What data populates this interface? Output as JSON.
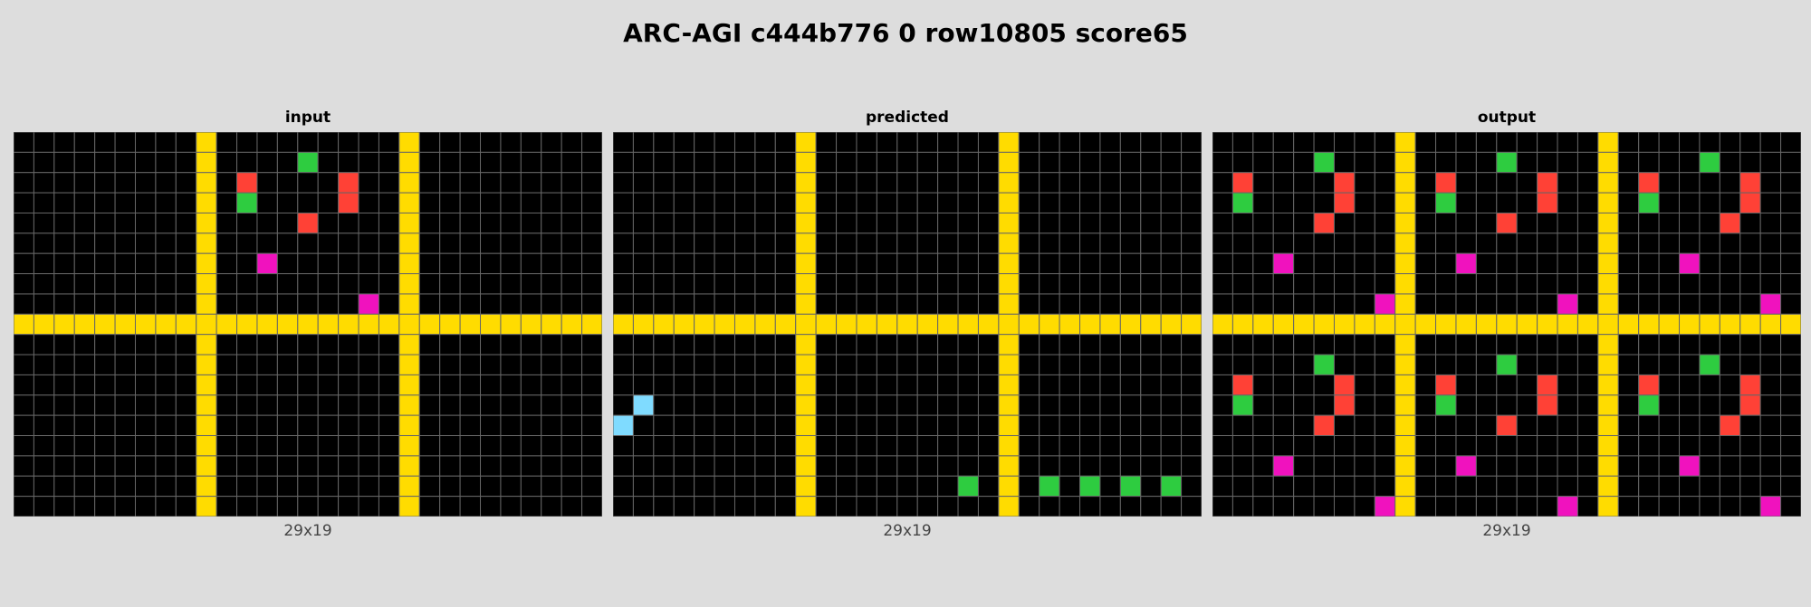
{
  "title": "ARC-AGI c444b776 0 row10805 score65",
  "colors": {
    "0": "#000000",
    "2": "#FF4136",
    "3": "#2ECC40",
    "4": "#FFDC00",
    "6": "#F012BE",
    "8": "#7FDBFF",
    "gridline": "#666666"
  },
  "panels": [
    {
      "label": "input",
      "size": "29x19",
      "grid": [
        "00000000040000000004000000000",
        "00000000040000300004000000000",
        "00000000040200002004000000000",
        "00000000040300002004000000000",
        "00000000040000200004000000000",
        "00000000040000000004000000000",
        "00000000040060000004000000000",
        "00000000040000000004000000000",
        "00000000040000000604000000000",
        "44444444444444444444444444444",
        "00000000040000000004000000000",
        "00000000040000000004000000000",
        "00000000040000000004000000000",
        "00000000040000000004000000000",
        "00000000040000000004000000000",
        "00000000040000000004000000000",
        "00000000040000000004000000000",
        "00000000040000000004000000000",
        "00000000040000000004000000000"
      ]
    },
    {
      "label": "predicted",
      "size": "29x19",
      "grid": [
        "00000000040000000004000000000",
        "00000000040000000004000000000",
        "00000000040000000004000000000",
        "00000000040000000004000000000",
        "00000000040000000004000000000",
        "00000000040000000004000000000",
        "00000000040000000004000000000",
        "00000000040000000004000000000",
        "00000000040000000004000000000",
        "44444444444444444444444444444",
        "00000000040000000004000000000",
        "00000000040000000004000000000",
        "00000000040000000004000000000",
        "08000000040000000004000000000",
        "80000000040000000004000000000",
        "00000000040000000004000000000",
        "00000000040000000004000000000",
        "00000000040000000304030303030",
        "00000000040000000004000000000"
      ]
    },
    {
      "label": "output",
      "size": "29x19",
      "grid": [
        "00000000040000000004000000000",
        "00000300040000300004000030000",
        "02000020040200002004020000200",
        "03000020040300002004030000200",
        "00000200040000200004000002000",
        "00000000040000000004000000000",
        "00060000040060000004000600000",
        "00000000040000000004000000000",
        "00000000640000000604000000060",
        "44444444444444444444444444444",
        "00000000040000000004000000000",
        "00000300040000300004000030000",
        "02000020040200002004020000200",
        "03000020040300002004030000200",
        "00000200040000200004000002000",
        "00000000040000000004000000000",
        "00060000040060000004000600000",
        "00000000040000000004000000000",
        "00000000640000000604000000060"
      ]
    }
  ]
}
